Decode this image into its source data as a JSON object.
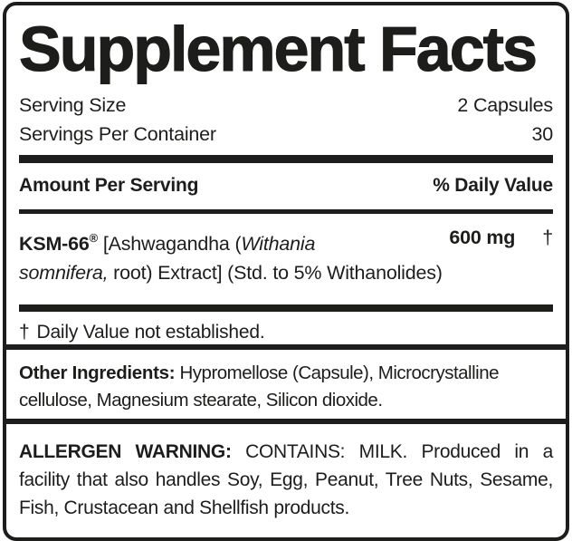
{
  "colors": {
    "ink": "#1d1d1b",
    "background": "#ffffff"
  },
  "panel": {
    "title": "Supplement Facts",
    "serving_size": {
      "label": "Serving Size",
      "value": "2 Capsules"
    },
    "servings_per_container": {
      "label": "Servings Per Container",
      "value": "30"
    },
    "column_headers": {
      "left": "Amount Per Serving",
      "right": "% Daily Value"
    },
    "ingredient": {
      "brand": "KSM-66",
      "trademark_symbol": "®",
      "name_segment": " [Ashwagandha (",
      "latin_line1": "Withania",
      "latin_line2": "somnifera,",
      "name_rest": " root) Extract] (Std. to 5% Withanolides)",
      "amount": "600 mg",
      "daily_value_symbol": "†"
    },
    "footnote": {
      "symbol": "†",
      "text": "Daily Value not established."
    }
  },
  "other_ingredients": {
    "label": "Other Ingredients:",
    "text": "Hypromellose (Capsule), Microcrystalline cellulose, Magnesium stearate, Silicon dioxide."
  },
  "allergen": {
    "label": "ALLERGEN WARNING:",
    "text": "CONTAINS: MILK. Produced in a facility that also handles Soy, Egg, Peanut, Tree Nuts, Sesame, Fish, Crustacean and Shellfish products."
  }
}
